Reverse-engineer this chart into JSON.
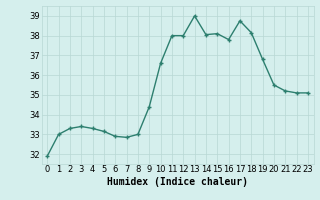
{
  "x": [
    0,
    1,
    2,
    3,
    4,
    5,
    6,
    7,
    8,
    9,
    10,
    11,
    12,
    13,
    14,
    15,
    16,
    17,
    18,
    19,
    20,
    21,
    22,
    23
  ],
  "y": [
    31.9,
    33.0,
    33.3,
    33.4,
    33.3,
    33.15,
    32.9,
    32.85,
    33.0,
    34.4,
    36.6,
    38.0,
    38.0,
    39.0,
    38.05,
    38.1,
    37.8,
    38.75,
    38.15,
    36.8,
    35.5,
    35.2,
    35.1,
    35.1
  ],
  "line_color": "#2d7f6f",
  "marker": "+",
  "bg_color": "#d5efed",
  "grid_color": "#b8d8d4",
  "xlabel": "Humidex (Indice chaleur)",
  "ylim": [
    31.5,
    39.5
  ],
  "xlim": [
    -0.5,
    23.5
  ],
  "yticks": [
    32,
    33,
    34,
    35,
    36,
    37,
    38,
    39
  ],
  "xticks": [
    0,
    1,
    2,
    3,
    4,
    5,
    6,
    7,
    8,
    9,
    10,
    11,
    12,
    13,
    14,
    15,
    16,
    17,
    18,
    19,
    20,
    21,
    22,
    23
  ],
  "xlabel_fontsize": 7,
  "tick_fontsize": 6,
  "linewidth": 1.0,
  "markersize": 3.5,
  "markeredgewidth": 1.0
}
